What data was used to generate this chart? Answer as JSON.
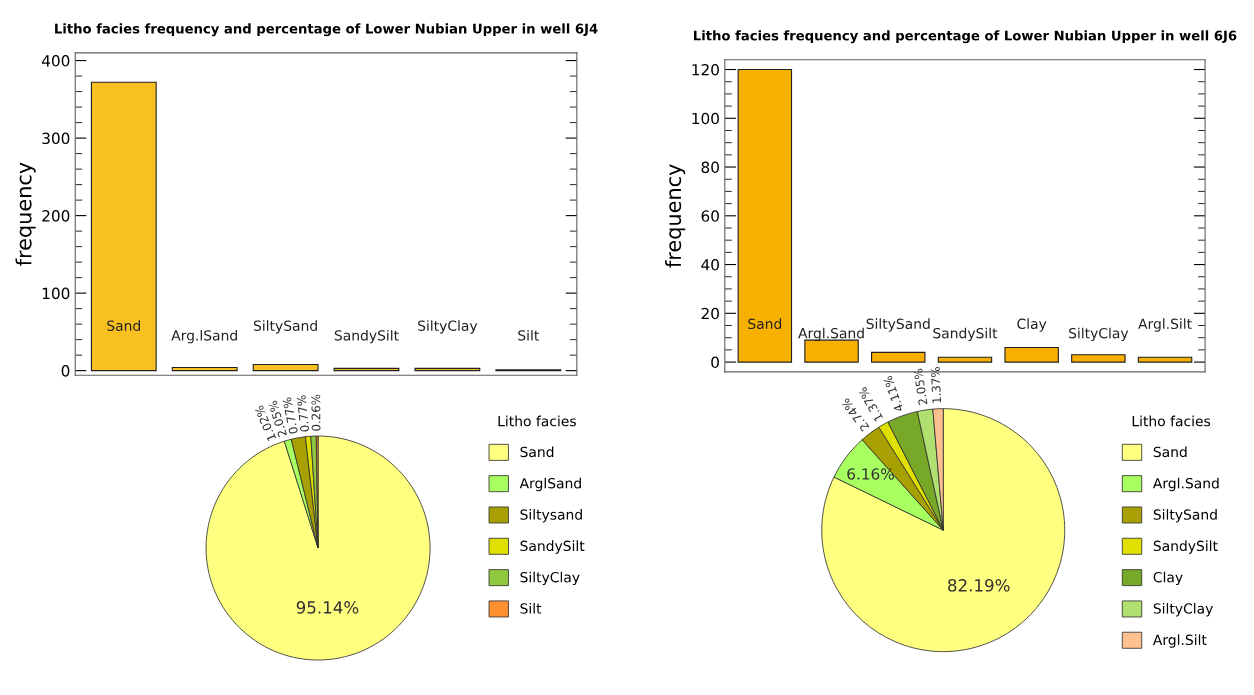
{
  "chart_data": [
    {
      "type": "bar",
      "title": "Litho facies frequency and percentage of Lower Nubian Upper in well 6J4",
      "ylabel": "frequency",
      "categories": [
        "Sand",
        "Arg.lSand",
        "SiltySand",
        "SandySilt",
        "SiltyClay",
        "Silt"
      ],
      "values": [
        372,
        4,
        8,
        3,
        3,
        1
      ],
      "color": "#f8c020",
      "ylim": [
        -6,
        410
      ],
      "yticks": [
        0,
        100,
        200,
        300,
        400
      ],
      "tick_labels": "y",
      "grid": false
    },
    {
      "type": "bar",
      "title": "Litho facies frequency and percentage of Lower Nubian Upper in well 6J6",
      "ylabel": "frequency",
      "categories": [
        "Sand",
        "Argl.Sand",
        "SiltySand",
        "SandySilt",
        "Clay",
        "SiltyClay",
        "Argl.Silt"
      ],
      "values": [
        120,
        9,
        4,
        2,
        6,
        3,
        2
      ],
      "color": "#f8b000",
      "ylim": [
        -4,
        124
      ],
      "yticks": [
        0,
        20,
        40,
        60,
        80,
        100,
        120
      ],
      "tick_labels": "y",
      "grid": false
    },
    {
      "type": "pie",
      "legend_title": "Litho facies",
      "legend": "right",
      "categories": [
        "Sand",
        "ArglSand",
        "Siltysand",
        "SandySilt",
        "SiltyClay",
        "Silt"
      ],
      "values": [
        95.14,
        1.02,
        2.05,
        0.77,
        0.77,
        0.26
      ],
      "value_labels": [
        "95.14%",
        "1.02%",
        "2.05%",
        "0.77%",
        "0.77%",
        "0.26%"
      ],
      "colors": [
        "#ffff80",
        "#a8ff60",
        "#a8a000",
        "#e0e000",
        "#90c840",
        "#ff9030"
      ]
    },
    {
      "type": "pie",
      "legend_title": "Litho facies",
      "legend": "right",
      "categories": [
        "Sand",
        "Argl.Sand",
        "SiltySand",
        "SandySilt",
        "Clay",
        "SiltyClay",
        "Argl.Silt"
      ],
      "values": [
        82.19,
        6.16,
        2.74,
        1.37,
        4.11,
        2.05,
        1.37
      ],
      "value_labels": [
        "82.19%",
        "6.16%",
        "2.74%",
        "1.37%",
        "4.11%",
        "2.05%",
        "1.37%"
      ],
      "colors": [
        "#ffff80",
        "#a8ff60",
        "#a8a000",
        "#e0e000",
        "#78a828",
        "#b0e070",
        "#ffc090"
      ]
    }
  ]
}
